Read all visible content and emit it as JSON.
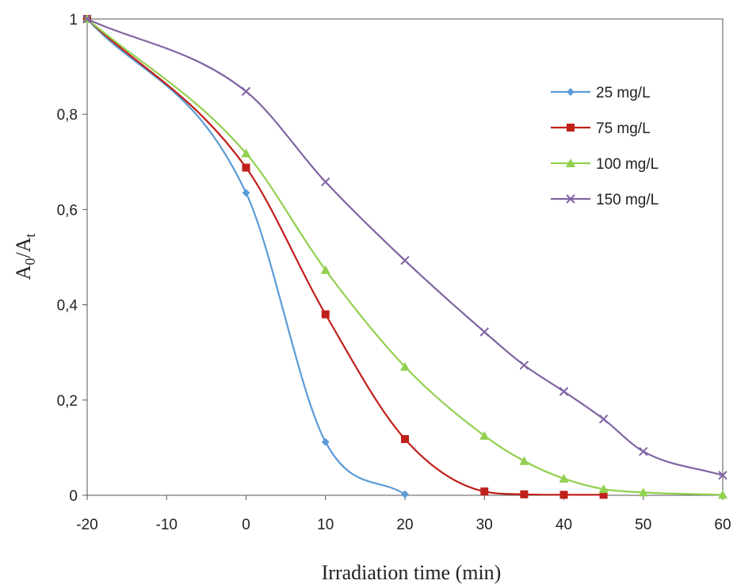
{
  "chart_data": {
    "type": "line",
    "xlabel": "Irradiation time (min)",
    "ylabel": "A0/At",
    "ylabel_parts": {
      "main": "A",
      "sub1": "0",
      "slash": "/A",
      "sub2": "t"
    },
    "xlim": [
      -20,
      60
    ],
    "ylim": [
      0,
      1
    ],
    "x_ticks": [
      -20,
      -10,
      0,
      10,
      20,
      30,
      40,
      50,
      60
    ],
    "x_tick_labels": [
      "-20",
      "-10",
      "0",
      "10",
      "20",
      "30",
      "40",
      "50",
      "60"
    ],
    "y_ticks": [
      0,
      0.2,
      0.4,
      0.6,
      0.8,
      1
    ],
    "y_tick_labels": [
      "0",
      "0,2",
      "0,4",
      "0,6",
      "0,8",
      "1"
    ],
    "grid": false,
    "legend_position": "top-right",
    "series": [
      {
        "name": "25  mg/L",
        "color": "#5b9bd5",
        "marker": "diamond",
        "x": [
          -20,
          0,
          10,
          20
        ],
        "y": [
          1.0,
          0.635,
          0.112,
          0.002
        ]
      },
      {
        "name": "75  mg/L",
        "color": "#c0201a",
        "marker": "square",
        "x": [
          -20,
          0,
          10,
          20,
          30,
          35,
          40,
          45
        ],
        "y": [
          1.0,
          0.688,
          0.38,
          0.118,
          0.008,
          0.002,
          0.001,
          0.001
        ]
      },
      {
        "name": "100 mg/L",
        "color": "#92d050",
        "marker": "triangle",
        "x": [
          -20,
          0,
          10,
          20,
          30,
          35,
          40,
          45,
          50,
          60
        ],
        "y": [
          1.0,
          0.718,
          0.473,
          0.27,
          0.125,
          0.072,
          0.035,
          0.013,
          0.006,
          0.001
        ]
      },
      {
        "name": "150 mg/L",
        "color": "#8064a2",
        "marker": "x",
        "x": [
          -20,
          0,
          10,
          20,
          30,
          35,
          40,
          45,
          50,
          60
        ],
        "y": [
          1.0,
          0.848,
          0.658,
          0.493,
          0.343,
          0.273,
          0.218,
          0.16,
          0.092,
          0.042
        ]
      }
    ]
  }
}
